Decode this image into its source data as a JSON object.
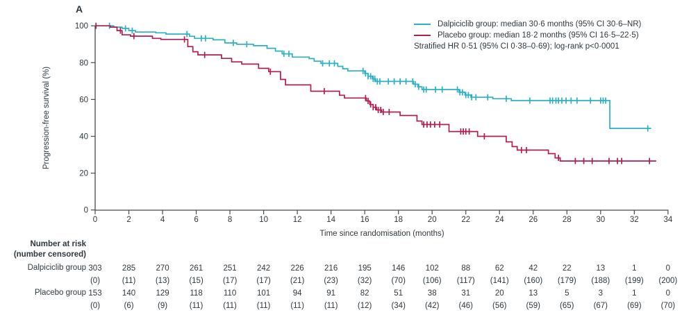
{
  "panel_label": "A",
  "colors": {
    "dalpiciclib": "#2AB0C6",
    "placebo": "#B11D52",
    "axis": "#46494c",
    "text": "#2e373e"
  },
  "legend": {
    "items": [
      {
        "label": "Dalpiciclib group: median 30·6 months (95% CI 30·6–NR)",
        "color_key": "dalpiciclib"
      },
      {
        "label": "Placebo group: median 18·2 months (95% CI 16·5–22·5)",
        "color_key": "placebo"
      }
    ],
    "note": "Stratified HR 0·51 (95% CI 0·38–0·69); log-rank p<0·0001"
  },
  "chart_data": {
    "type": "line",
    "subtype": "kaplan-meier-step",
    "title": "",
    "xlabel": "Time since randomisation (months)",
    "ylabel": "Progression-free survival (%)",
    "xlim": [
      0,
      34
    ],
    "ylim": [
      0,
      100
    ],
    "x_ticks": [
      0,
      2,
      4,
      6,
      8,
      10,
      12,
      14,
      16,
      18,
      20,
      22,
      24,
      26,
      28,
      30,
      32,
      34
    ],
    "y_ticks": [
      0,
      20,
      40,
      60,
      80,
      100
    ],
    "grid": false,
    "legend_position": "top-right",
    "series": [
      {
        "name": "Dalpiciclib group",
        "color_key": "dalpiciclib",
        "median_months": "30·6",
        "ci": "30·6–NR",
        "steps": [
          [
            0,
            100
          ],
          [
            1.1,
            99.3
          ],
          [
            1.6,
            98.6
          ],
          [
            2.0,
            97.4
          ],
          [
            2.4,
            96.6
          ],
          [
            3.6,
            96.2
          ],
          [
            4.2,
            95.5
          ],
          [
            5.6,
            94.3
          ],
          [
            5.9,
            93.2
          ],
          [
            7.0,
            92.4
          ],
          [
            7.7,
            90.7
          ],
          [
            8.4,
            90.0
          ],
          [
            9.4,
            89.2
          ],
          [
            10.2,
            87.8
          ],
          [
            10.7,
            86.3
          ],
          [
            11.1,
            84.8
          ],
          [
            11.7,
            83.0
          ],
          [
            12.7,
            82.2
          ],
          [
            13.0,
            80.8
          ],
          [
            13.4,
            79.6
          ],
          [
            14.4,
            78.0
          ],
          [
            14.7,
            76.7
          ],
          [
            15.0,
            75.5
          ],
          [
            16.0,
            74.1
          ],
          [
            16.2,
            72.6
          ],
          [
            16.45,
            71.2
          ],
          [
            16.65,
            69.8
          ],
          [
            18.9,
            68.3
          ],
          [
            19.15,
            66.9
          ],
          [
            19.4,
            65.4
          ],
          [
            21.6,
            63.9
          ],
          [
            21.95,
            62.4
          ],
          [
            22.3,
            61.2
          ],
          [
            23.6,
            60.4
          ],
          [
            24.7,
            59.4
          ],
          [
            30.55,
            44.3
          ]
        ],
        "end_month": 33.0,
        "censor_months": [
          0.85,
          1.8,
          2.2,
          5.45,
          6.3,
          6.55,
          8.2,
          9.0,
          11.2,
          11.5,
          13.5,
          13.9,
          14.2,
          15.9,
          16.05,
          16.2,
          16.35,
          16.5,
          16.6,
          16.75,
          16.9,
          17.4,
          17.75,
          18.1,
          18.45,
          18.85,
          19.0,
          19.2,
          19.5,
          19.65,
          20.2,
          20.6,
          21.5,
          21.65,
          21.8,
          22.0,
          22.15,
          22.35,
          22.6,
          23.3,
          24.4,
          25.8,
          27.0,
          27.15,
          27.35,
          27.5,
          27.7,
          27.95,
          28.25,
          28.6,
          29.4,
          30.0,
          30.15,
          30.3,
          32.8
        ]
      },
      {
        "name": "Placebo group",
        "color_key": "placebo",
        "median_months": "18·2",
        "ci": "16·5–22·5",
        "steps": [
          [
            0,
            100
          ],
          [
            0.9,
            99.3
          ],
          [
            1.3,
            97.4
          ],
          [
            1.6,
            95.1
          ],
          [
            2.1,
            94.4
          ],
          [
            3.4,
            93.2
          ],
          [
            3.9,
            92.6
          ],
          [
            5.5,
            88.7
          ],
          [
            5.8,
            85.9
          ],
          [
            6.1,
            84.2
          ],
          [
            7.5,
            82.3
          ],
          [
            8.1,
            80.4
          ],
          [
            8.7,
            79.2
          ],
          [
            9.7,
            76.9
          ],
          [
            10.3,
            75.1
          ],
          [
            11.0,
            70.9
          ],
          [
            11.3,
            67.9
          ],
          [
            12.8,
            64.5
          ],
          [
            14.5,
            62.3
          ],
          [
            14.8,
            60.8
          ],
          [
            16.1,
            59.2
          ],
          [
            16.3,
            57.3
          ],
          [
            16.5,
            55.8
          ],
          [
            16.7,
            54.3
          ],
          [
            17.0,
            53.2
          ],
          [
            18.1,
            51.3
          ],
          [
            19.1,
            48.3
          ],
          [
            19.4,
            46.4
          ],
          [
            21.0,
            42.6
          ],
          [
            22.7,
            40.0
          ],
          [
            24.4,
            37.0
          ],
          [
            24.75,
            34.4
          ],
          [
            25.05,
            32.5
          ],
          [
            26.9,
            30.6
          ],
          [
            27.3,
            28.3
          ],
          [
            27.6,
            26.6
          ]
        ],
        "end_month": 33.3,
        "censor_months": [
          0.05,
          1.5,
          2.3,
          5.3,
          6.5,
          10.4,
          13.6,
          16.05,
          16.2,
          16.35,
          16.5,
          16.65,
          16.8,
          16.95,
          17.1,
          17.45,
          19.5,
          19.7,
          19.9,
          20.15,
          20.45,
          21.7,
          21.85,
          22.0,
          22.2,
          23.1,
          25.3,
          25.6,
          27.5,
          28.5,
          29.0,
          29.5,
          30.5,
          31.0,
          31.25,
          32.9
        ]
      }
    ]
  },
  "risk_table": {
    "header_line1": "Number at risk",
    "header_line2": "(number censored)",
    "months": [
      0,
      2,
      4,
      6,
      8,
      10,
      12,
      14,
      16,
      18,
      20,
      22,
      24,
      26,
      28,
      30,
      32,
      34
    ],
    "rows": [
      {
        "label": "Dalpiciclib group",
        "at_risk": [
          "303",
          "285",
          "270",
          "261",
          "251",
          "242",
          "226",
          "216",
          "195",
          "146",
          "102",
          "88",
          "62",
          "42",
          "22",
          "13",
          "1",
          "0"
        ],
        "censored": [
          "(0)",
          "(11)",
          "(13)",
          "(15)",
          "(17)",
          "(17)",
          "(21)",
          "(23)",
          "(32)",
          "(70)",
          "(106)",
          "(117)",
          "(141)",
          "(160)",
          "(179)",
          "(188)",
          "(199)",
          "(200)"
        ]
      },
      {
        "label": "Placebo group",
        "at_risk": [
          "153",
          "140",
          "129",
          "118",
          "110",
          "101",
          "94",
          "91",
          "82",
          "51",
          "38",
          "31",
          "20",
          "13",
          "5",
          "3",
          "1",
          "0"
        ],
        "censored": [
          "(0)",
          "(6)",
          "(9)",
          "(11)",
          "(11)",
          "(11)",
          "(11)",
          "(11)",
          "(12)",
          "(34)",
          "(42)",
          "(46)",
          "(56)",
          "(59)",
          "(65)",
          "(67)",
          "(69)",
          "(70)"
        ]
      }
    ]
  }
}
